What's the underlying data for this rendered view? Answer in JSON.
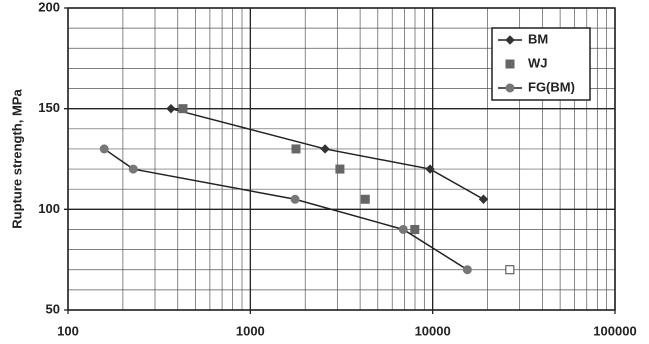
{
  "chart_data": {
    "type": "scatter",
    "y_label": "Rupture strength, MPa",
    "xscale": "log",
    "xlim": [
      100,
      100000
    ],
    "xticks": [
      100,
      1000,
      10000,
      100000
    ],
    "minor_xticks": [
      200,
      300,
      400,
      500,
      600,
      700,
      800,
      900,
      2000,
      3000,
      4000,
      5000,
      6000,
      7000,
      8000,
      9000,
      20000,
      30000,
      40000,
      50000,
      60000,
      70000,
      80000,
      90000
    ],
    "ylim": [
      50,
      200
    ],
    "yticks": [
      50,
      100,
      150,
      200
    ],
    "minor_yticks": [
      60,
      70,
      80,
      90,
      110,
      120,
      130,
      140,
      160,
      170,
      180,
      190
    ],
    "grid": true,
    "legend": "upper right",
    "series": [
      {
        "name": "BM",
        "color": "#333333",
        "marker": "diamond",
        "line": true,
        "x": [
          367,
          2570,
          9680,
          19000
        ],
        "values": [
          150,
          130,
          120,
          105
        ]
      },
      {
        "name": "WJ",
        "color": "#666666",
        "marker": "square",
        "line": false,
        "x": [
          427,
          1780,
          3100,
          4270,
          7980,
          26500
        ],
        "values": [
          150,
          130,
          120,
          105,
          90,
          70
        ],
        "open_markers": [
          5
        ]
      },
      {
        "name": "FG(BM)",
        "color": "#777777",
        "marker": "circle",
        "line": true,
        "x": [
          158,
          228,
          1760,
          6900,
          15500
        ],
        "values": [
          130,
          120,
          105,
          90,
          70
        ]
      }
    ]
  }
}
